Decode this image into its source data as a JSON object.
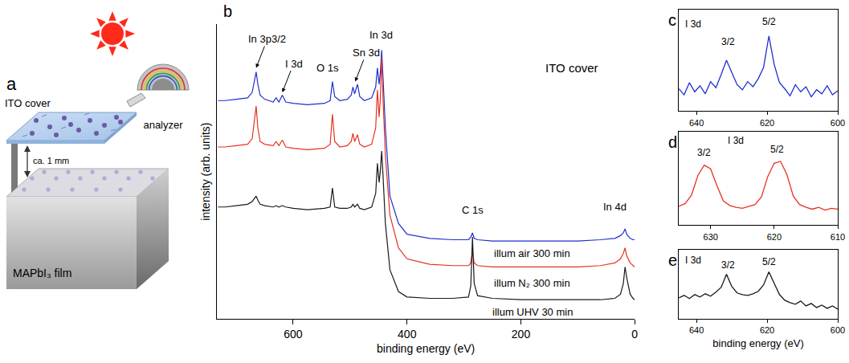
{
  "diagram": {
    "label": "a",
    "cover": "ITO cover",
    "gap": "ca. 1 mm",
    "film": "MAPbI₃ film",
    "detector": "analyzer"
  },
  "chart_data": [
    {
      "label": "b",
      "type": "line",
      "x_label": "binding energy (eV)",
      "y_label": "intensity (arb. units)",
      "x": [
        732,
        720,
        700,
        680,
        672,
        668,
        665,
        662,
        658,
        650,
        635,
        630,
        625,
        619,
        613,
        600,
        575,
        545,
        535,
        531,
        527,
        518,
        505,
        498,
        495,
        492,
        487,
        483,
        475,
        462,
        455,
        452,
        449,
        447,
        444.5,
        442,
        438,
        430,
        415,
        400,
        360,
        320,
        292,
        288,
        285,
        282,
        276,
        250,
        200,
        150,
        100,
        60,
        35,
        25,
        20,
        17,
        14,
        8,
        3,
        0
      ],
      "series": [
        {
          "name": "illum air 300 min",
          "color": "#1f2fd0",
          "name_x": 180,
          "name_y": 24,
          "values": [
            80,
            80,
            80.5,
            81,
            83,
            87,
            90.5,
            86,
            82,
            80.5,
            79.5,
            81,
            79.5,
            82,
            79.5,
            79,
            78.5,
            79,
            80,
            87,
            81.5,
            80,
            80.5,
            82,
            85,
            82.5,
            86,
            81.5,
            80,
            81,
            85,
            92,
            86,
            90,
            98.5,
            88,
            70,
            45,
            35,
            31,
            29.5,
            29,
            29,
            30,
            31.5,
            29.5,
            29,
            28.5,
            28.5,
            28.5,
            28.5,
            29,
            29.5,
            30.5,
            31.5,
            33,
            31,
            29.5,
            29,
            29
          ]
        },
        {
          "name": "illum N₂ 300 min",
          "color": "#e8311f",
          "name_x": 180,
          "name_y": 13,
          "values": [
            63,
            63,
            63.5,
            64,
            66,
            72,
            78,
            70,
            65,
            64,
            63.5,
            65,
            63.5,
            65.5,
            63,
            62.5,
            62,
            62.5,
            64,
            75,
            65,
            63,
            63.5,
            65,
            68,
            65,
            67.5,
            64,
            63,
            64,
            70,
            84,
            74,
            80,
            96,
            80,
            60,
            38,
            26,
            22,
            20,
            19.5,
            19.5,
            20.5,
            24.5,
            20.5,
            19.5,
            19,
            19,
            19,
            19,
            19.5,
            20.5,
            22,
            24,
            26,
            23,
            20.5,
            19.5,
            19
          ]
        },
        {
          "name": "illum UHV 30 min",
          "color": "#1a1a1a",
          "name_x": 180,
          "name_y": 2.5,
          "values": [
            41,
            41,
            41.5,
            42,
            43,
            44,
            45,
            43.5,
            42,
            41.5,
            41,
            41.5,
            41,
            41.5,
            41,
            40.5,
            40,
            40.5,
            41,
            48,
            41,
            40.5,
            40.5,
            41,
            42,
            41,
            42,
            40.5,
            40,
            41,
            46,
            57,
            50,
            54,
            61.5,
            52,
            35,
            18,
            10,
            8,
            7.5,
            7.5,
            8,
            12,
            30,
            13,
            8.5,
            7.5,
            7,
            7,
            7,
            7,
            7.5,
            9,
            13,
            19,
            15,
            9,
            7.5,
            7
          ]
        }
      ],
      "xlim": [
        734,
        0
      ],
      "xticks": [
        600,
        400,
        200,
        0
      ],
      "ylim": [
        0,
        108
      ],
      "tick_labels": "x",
      "annotations": [
        {
          "text": "In 3p3/2",
          "x": 665,
          "y": 92,
          "arrow": true
        },
        {
          "text": "I 3d",
          "x": 619,
          "y": 83,
          "arrow": true
        },
        {
          "text": "O 1s",
          "x": 540,
          "y": 92
        },
        {
          "text": "Sn 3d",
          "x": 491,
          "y": 87,
          "arrow": true
        },
        {
          "text": "In 3d",
          "x": 445,
          "y": 104
        },
        {
          "text": "C 1s",
          "x": 285,
          "y": 40
        },
        {
          "text": "In 4d",
          "x": 35,
          "y": 41
        },
        {
          "text": "ITO cover",
          "x": 110,
          "y": 92
        }
      ]
    },
    {
      "label": "c",
      "type": "line",
      "x": [
        645,
        643.5,
        642,
        640.5,
        639,
        637.5,
        636,
        634.5,
        633,
        631.5,
        630,
        628.5,
        627,
        625.5,
        624,
        622.5,
        621,
        619.5,
        618,
        616.5,
        615,
        613.5,
        612,
        610.5,
        609,
        607.5,
        606,
        604.5,
        603,
        601.5,
        600
      ],
      "series": [
        {
          "color": "#1f2fd0",
          "values": [
            3.2,
            2.6,
            3.8,
            2.9,
            3.5,
            2.7,
            3.9,
            3.3,
            4.6,
            6.0,
            4.8,
            3.6,
            3.1,
            3.9,
            3.4,
            4.2,
            5.3,
            8.4,
            5.6,
            3.8,
            3.2,
            2.5,
            3.6,
            2.9,
            3.4,
            2.4,
            3.1,
            2.7,
            3.5,
            2.6,
            3.0
          ]
        }
      ],
      "xlim": [
        645,
        600
      ],
      "xticks": [
        640,
        620,
        600
      ],
      "ylim": [
        1,
        11
      ],
      "tick_labels": "x",
      "annotations": [
        {
          "text": "I 3d",
          "x": 641,
          "y": 9.6
        },
        {
          "text": "3/2",
          "x": 631,
          "y": 7.8
        },
        {
          "text": "5/2",
          "x": 619.5,
          "y": 9.8
        }
      ]
    },
    {
      "label": "d",
      "type": "line",
      "x": [
        635,
        634,
        633,
        632,
        631,
        630,
        629,
        628,
        627,
        626,
        625,
        624,
        623,
        622,
        621,
        620,
        619,
        618,
        617,
        616,
        615,
        614,
        613,
        612,
        611,
        610
      ],
      "series": [
        {
          "color": "#e8311f",
          "values": [
            3.0,
            3.3,
            4.2,
            6.3,
            7.4,
            7.0,
            5.2,
            3.6,
            3.1,
            2.9,
            2.8,
            3.0,
            3.2,
            4.0,
            6.2,
            7.6,
            7.8,
            6.4,
            4.1,
            3.2,
            2.9,
            2.7,
            2.9,
            2.6,
            2.8,
            2.7
          ]
        }
      ],
      "xlim": [
        635,
        610
      ],
      "xticks": [
        630,
        620,
        610
      ],
      "ylim": [
        1,
        11
      ],
      "tick_labels": "x",
      "annotations": [
        {
          "text": "I 3d",
          "x": 626,
          "y": 10
        },
        {
          "text": "3/2",
          "x": 631,
          "y": 8.7
        },
        {
          "text": "5/2",
          "x": 619.5,
          "y": 9.1
        }
      ]
    },
    {
      "label": "e",
      "type": "line",
      "x_label": "binding energy (eV)",
      "x": [
        645,
        643.5,
        642,
        640.5,
        639,
        637.5,
        636,
        634.5,
        633,
        631.5,
        630,
        628.5,
        627,
        625.5,
        624,
        622.5,
        621,
        619.5,
        618,
        616.5,
        615,
        613.5,
        612,
        610.5,
        609,
        607.5,
        606,
        604.5,
        603,
        601.5,
        600
      ],
      "series": [
        {
          "color": "#1a1a1a",
          "values": [
            3.6,
            3.9,
            3.5,
            4.0,
            3.7,
            4.1,
            3.8,
            4.3,
            4.9,
            6.5,
            5.0,
            4.2,
            4.0,
            3.9,
            4.1,
            4.4,
            5.2,
            6.8,
            5.4,
            4.0,
            3.3,
            3.0,
            2.8,
            3.2,
            2.6,
            2.9,
            2.4,
            2.7,
            2.3,
            2.6,
            2.2
          ]
        }
      ],
      "xlim": [
        645,
        600
      ],
      "xticks": [
        640,
        620,
        600
      ],
      "ylim": [
        1,
        9.5
      ],
      "tick_labels": "x",
      "annotations": [
        {
          "text": "I 3d",
          "x": 641,
          "y": 8.3
        },
        {
          "text": "3/2",
          "x": 631,
          "y": 7.7
        },
        {
          "text": "5/2",
          "x": 619.5,
          "y": 8.1
        }
      ]
    }
  ]
}
